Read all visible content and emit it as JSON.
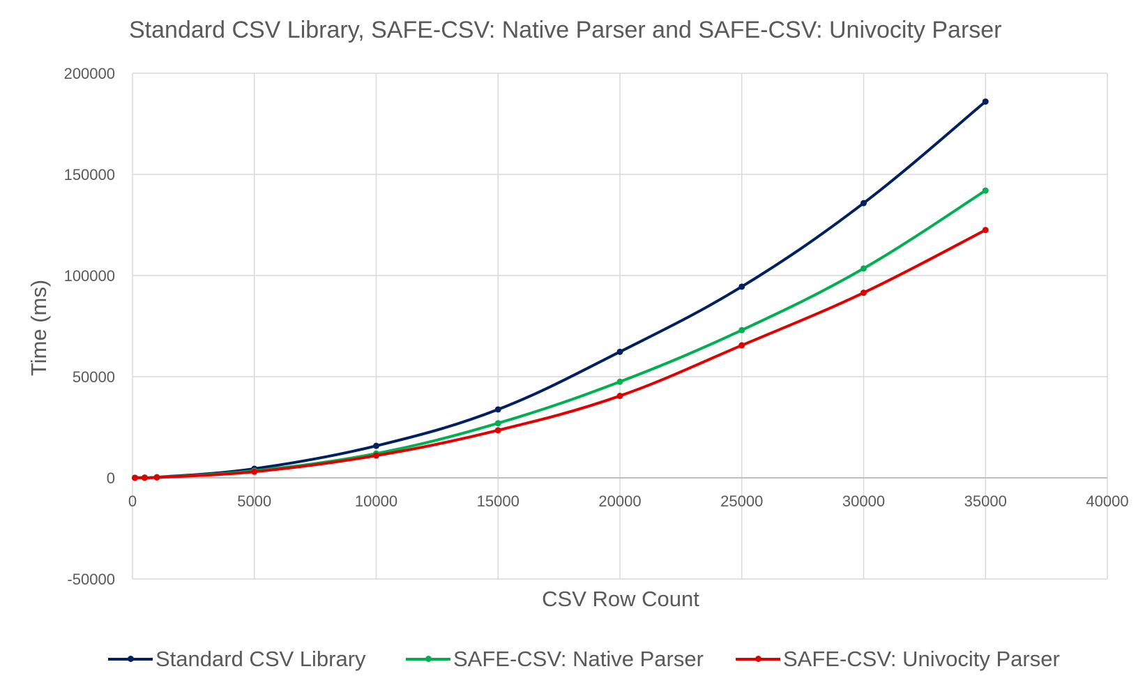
{
  "chart_data": {
    "type": "line",
    "title": "Standard CSV Library, SAFE-CSV: Native Parser and SAFE-CSV: Univocity Parser",
    "xlabel": "CSV Row Count",
    "ylabel": "Time (ms)",
    "xlim": [
      0,
      40000
    ],
    "ylim": [
      -50000,
      200000
    ],
    "xticks": [
      "0",
      "5000",
      "10000",
      "15000",
      "20000",
      "25000",
      "30000",
      "35000",
      "40000"
    ],
    "yticks": [
      "-50000",
      "0",
      "50000",
      "100000",
      "150000",
      "200000"
    ],
    "grid": true,
    "legend_position": "bottom",
    "series": [
      {
        "name": "Standard CSV Library",
        "color": "#002060",
        "x": [
          100,
          500,
          1000,
          5000,
          10000,
          15000,
          20000,
          25000,
          30000,
          35000
        ],
        "y": [
          20,
          100,
          300,
          4500,
          15800,
          33800,
          62300,
          94500,
          135800,
          186000
        ]
      },
      {
        "name": "SAFE-CSV: Native Parser",
        "color": "#00B050",
        "x": [
          100,
          500,
          1000,
          5000,
          10000,
          15000,
          20000,
          25000,
          30000,
          35000
        ],
        "y": [
          15,
          80,
          250,
          3500,
          12000,
          27000,
          47500,
          73000,
          103500,
          142000
        ]
      },
      {
        "name": "SAFE-CSV: Univocity Parser",
        "color": "#E00000",
        "x": [
          100,
          500,
          1000,
          5000,
          10000,
          15000,
          20000,
          25000,
          30000,
          35000
        ],
        "y": [
          10,
          70,
          200,
          3000,
          11000,
          23500,
          40500,
          65500,
          91500,
          122500
        ]
      }
    ]
  }
}
